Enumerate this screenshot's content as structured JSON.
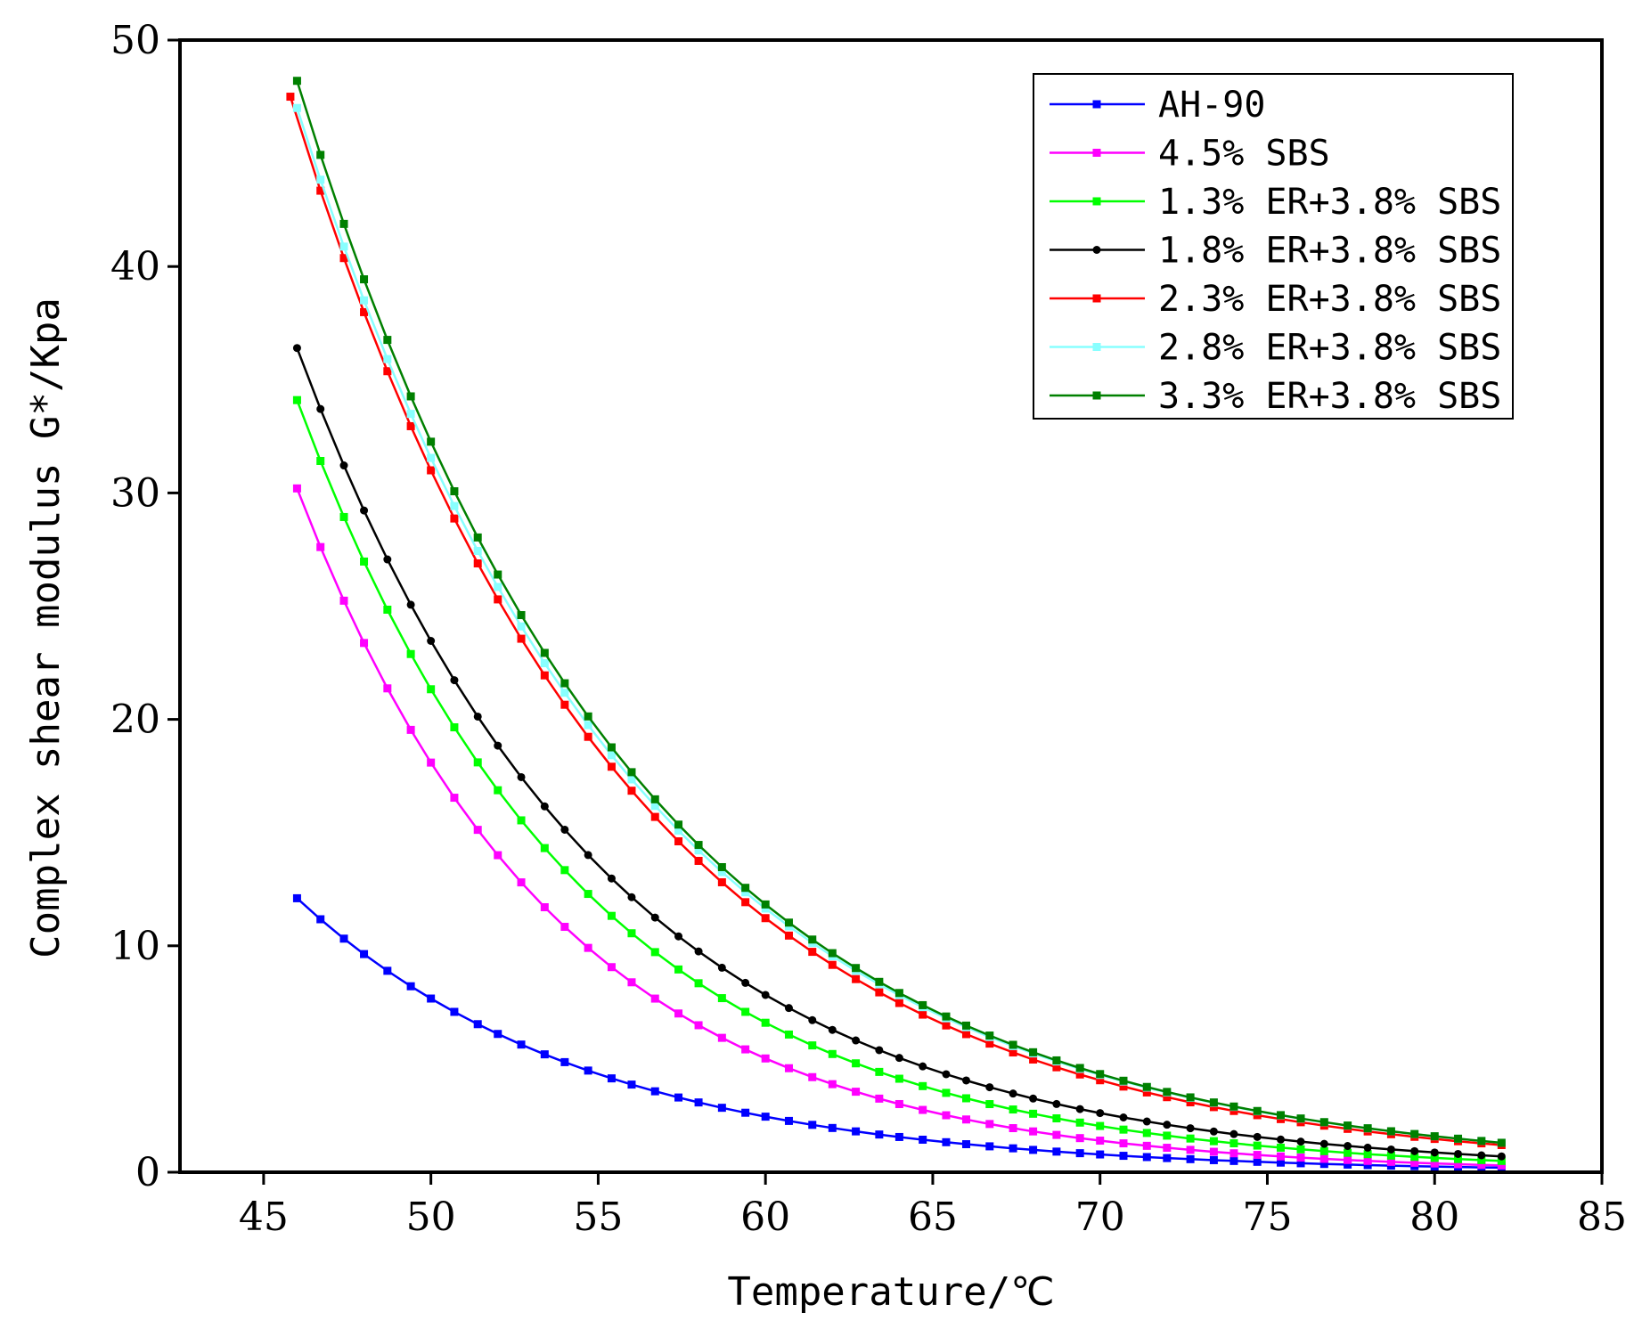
{
  "chart_data": {
    "type": "line",
    "title": "",
    "xlabel": "Temperature/℃",
    "ylabel": "Complex shear modulus  G*/Kpa",
    "xlim": [
      42.5,
      85
    ],
    "ylim": [
      0,
      50
    ],
    "xticks": [
      "45",
      "50",
      "55",
      "60",
      "65",
      "70",
      "75",
      "80",
      "85"
    ],
    "yticks": [
      "0",
      "10",
      "20",
      "30",
      "40",
      "50"
    ],
    "grid": false,
    "legend_position": "top-right",
    "x": [
      46,
      46.7,
      47.4,
      48,
      48.7,
      49.4,
      50,
      50.7,
      51.4,
      52,
      52.7,
      53.4,
      54,
      54.7,
      55.4,
      56,
      56.7,
      57.4,
      58,
      58.7,
      59.4,
      60,
      60.7,
      61.4,
      62,
      62.7,
      63.4,
      64,
      64.7,
      65.4,
      66,
      66.7,
      67.4,
      68,
      68.7,
      69.4,
      70,
      70.7,
      71.4,
      72,
      72.7,
      73.4,
      74,
      74.7,
      75.4,
      76,
      76.7,
      77.4,
      78,
      78.7,
      79.4,
      80,
      80.7,
      81.4,
      82
    ],
    "series": [
      {
        "name": "AH-90",
        "color": "#0000ff",
        "marker": "square",
        "start_x": 46,
        "start_y": 12.1,
        "end_y": 0.2
      },
      {
        "name": "4.5% SBS",
        "color": "#ff00ff",
        "marker": "square",
        "start_x": 46,
        "start_y": 30.2,
        "end_y": 0.3
      },
      {
        "name": "1.3% ER+3.8% SBS",
        "color": "#00ff00",
        "marker": "square",
        "start_x": 46,
        "start_y": 34.1,
        "end_y": 0.5
      },
      {
        "name": "1.8% ER+3.8% SBS",
        "color": "#000000",
        "marker": "circle",
        "start_x": 46,
        "start_y": 36.4,
        "end_y": 0.7
      },
      {
        "name": "2.3% ER+3.8% SBS",
        "color": "#ff0000",
        "marker": "square",
        "start_x": 45.8,
        "start_y": 47.5,
        "end_y": 1.2
      },
      {
        "name": "2.8% ER+3.8% SBS",
        "color": "#88ffff",
        "marker": "square",
        "start_x": 46,
        "start_y": 47.0,
        "end_y": 1.3
      },
      {
        "name": "3.3% ER+3.8% SBS",
        "color": "#008000",
        "marker": "square",
        "start_x": 46,
        "start_y": 48.2,
        "end_y": 1.3
      }
    ]
  }
}
